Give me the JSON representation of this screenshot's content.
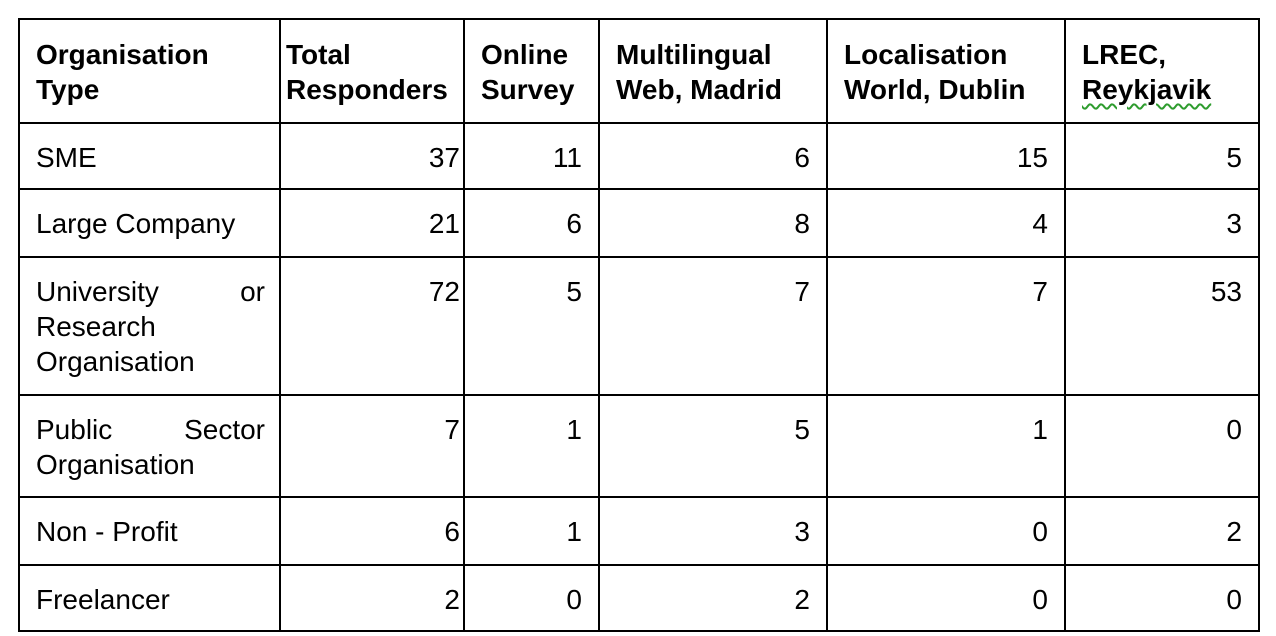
{
  "table": {
    "headers": {
      "organisation_type_line1": "Organisation",
      "organisation_type_line2": "Type",
      "total_line1": "Total",
      "total_line2": "Responders",
      "online_line1": "Online",
      "online_line2": "Survey",
      "multilingual_line1": "Multilingual",
      "multilingual_line2": "Web, Madrid",
      "localisation_line1": "Localisation",
      "localisation_line2": "World, Dublin",
      "lrec_line1": "LREC,",
      "lrec_line2": "Reykjavik"
    },
    "rows": [
      {
        "type_lines": [
          "SME"
        ],
        "total": "37",
        "online": "11",
        "madrid": "6",
        "dublin": "15",
        "reykjavik": "5"
      },
      {
        "type_lines": [
          "Large Company"
        ],
        "total": "21",
        "online": "6",
        "madrid": "8",
        "dublin": "4",
        "reykjavik": "3"
      },
      {
        "type_lines": [
          "University or",
          "Research",
          "Organisation"
        ],
        "total": "72",
        "online": "5",
        "madrid": "7",
        "dublin": "7",
        "reykjavik": "53"
      },
      {
        "type_lines": [
          "Public Sector",
          "Organisation"
        ],
        "total": "7",
        "online": "1",
        "madrid": "5",
        "dublin": "1",
        "reykjavik": "0"
      },
      {
        "type_lines": [
          "Non - Profit"
        ],
        "total": "6",
        "online": "1",
        "madrid": "3",
        "dublin": "0",
        "reykjavik": "2"
      },
      {
        "type_lines": [
          "Freelancer"
        ],
        "total": "2",
        "online": "0",
        "madrid": "2",
        "dublin": "0",
        "reykjavik": "0"
      }
    ],
    "spellcheck_underline_color": "#2e9c2e",
    "border_color": "#000000"
  }
}
